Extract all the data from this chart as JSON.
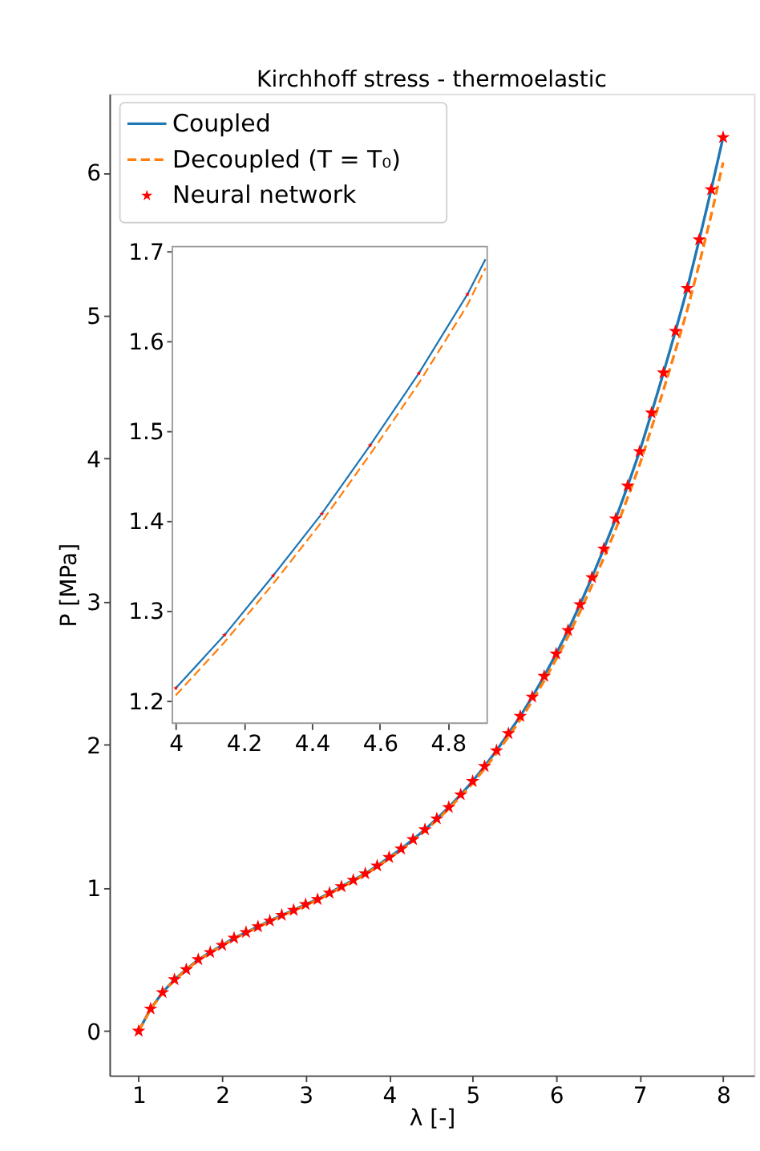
{
  "chart_data": [
    {
      "type": "line",
      "title": "Kirchhoff stress - thermoelastic",
      "xlabel": "λ [-]",
      "ylabel": "P [MPa]",
      "xlim": [
        0.65,
        8.37
      ],
      "ylim": [
        -0.31,
        6.55
      ],
      "xticks": [
        1,
        2,
        3,
        4,
        5,
        6,
        7,
        8
      ],
      "yticks": [
        0,
        1,
        2,
        3,
        4,
        5,
        6
      ],
      "grid": false,
      "legend": "top left",
      "series": [
        {
          "name": "Coupled",
          "line_style": "solid",
          "color": "#1f77b4",
          "x": [
            1,
            1.143,
            1.286,
            1.429,
            1.571,
            1.714,
            1.857,
            2,
            2.143,
            2.286,
            2.429,
            2.571,
            2.714,
            2.857,
            3,
            3.143,
            3.286,
            3.429,
            3.571,
            3.714,
            3.857,
            4,
            4.143,
            4.286,
            4.429,
            4.571,
            4.714,
            4.857,
            5,
            5.143,
            5.286,
            5.429,
            5.571,
            5.714,
            5.857,
            6,
            6.143,
            6.286,
            6.429,
            6.571,
            6.714,
            6.857,
            7,
            7.143,
            7.286,
            7.429,
            7.571,
            7.714,
            7.857,
            8
          ],
          "values": [
            0,
            0.155,
            0.27,
            0.36,
            0.43,
            0.5,
            0.55,
            0.6,
            0.65,
            0.69,
            0.73,
            0.77,
            0.81,
            0.845,
            0.885,
            0.92,
            0.965,
            1.01,
            1.055,
            1.1,
            1.155,
            1.214,
            1.273,
            1.339,
            1.408,
            1.484,
            1.564,
            1.652,
            1.745,
            1.85,
            1.96,
            2.08,
            2.2,
            2.335,
            2.48,
            2.636,
            2.8,
            2.98,
            3.17,
            3.37,
            3.58,
            3.81,
            4.05,
            4.32,
            4.6,
            4.89,
            5.19,
            5.53,
            5.88,
            6.245
          ]
        },
        {
          "name": "Decoupled (T = T₀)",
          "line_style": "dashed",
          "color": "#ff7f0e",
          "x": [
            1,
            1.143,
            1.286,
            1.429,
            1.571,
            1.714,
            1.857,
            2,
            2.143,
            2.286,
            2.429,
            2.571,
            2.714,
            2.857,
            3,
            3.143,
            3.286,
            3.429,
            3.571,
            3.714,
            3.857,
            4,
            4.143,
            4.286,
            4.429,
            4.571,
            4.714,
            4.857,
            5,
            5.143,
            5.286,
            5.429,
            5.571,
            5.714,
            5.857,
            6,
            6.143,
            6.286,
            6.429,
            6.571,
            6.714,
            6.857,
            7,
            7.143,
            7.286,
            7.429,
            7.571,
            7.714,
            7.857,
            8
          ],
          "values": [
            0,
            0.152,
            0.266,
            0.356,
            0.426,
            0.496,
            0.546,
            0.596,
            0.646,
            0.686,
            0.726,
            0.766,
            0.806,
            0.84,
            0.88,
            0.915,
            0.96,
            1.004,
            1.049,
            1.094,
            1.148,
            1.206,
            1.265,
            1.33,
            1.399,
            1.474,
            1.553,
            1.64,
            1.731,
            1.833,
            1.94,
            2.058,
            2.175,
            2.306,
            2.447,
            2.598,
            2.757,
            2.93,
            3.114,
            3.306,
            3.507,
            3.728,
            3.957,
            4.215,
            4.48,
            4.755,
            5.04,
            5.36,
            5.7,
            6.07
          ]
        },
        {
          "name": "Neural network",
          "type": "scatter",
          "marker": "star",
          "color": "#ff0000",
          "x": [
            1,
            1.143,
            1.286,
            1.429,
            1.571,
            1.714,
            1.857,
            2,
            2.143,
            2.286,
            2.429,
            2.571,
            2.714,
            2.857,
            3,
            3.143,
            3.286,
            3.429,
            3.571,
            3.714,
            3.857,
            4,
            4.143,
            4.286,
            4.429,
            4.571,
            4.714,
            4.857,
            5,
            5.143,
            5.286,
            5.429,
            5.571,
            5.714,
            5.857,
            6,
            6.143,
            6.286,
            6.429,
            6.571,
            6.714,
            6.857,
            7,
            7.143,
            7.286,
            7.429,
            7.571,
            7.714,
            7.857,
            8
          ],
          "values": [
            0,
            0.155,
            0.27,
            0.36,
            0.43,
            0.5,
            0.55,
            0.6,
            0.65,
            0.69,
            0.73,
            0.77,
            0.81,
            0.845,
            0.885,
            0.92,
            0.965,
            1.01,
            1.055,
            1.1,
            1.155,
            1.214,
            1.273,
            1.339,
            1.408,
            1.484,
            1.564,
            1.652,
            1.745,
            1.85,
            1.96,
            2.08,
            2.2,
            2.335,
            2.48,
            2.636,
            2.8,
            2.98,
            3.17,
            3.37,
            3.58,
            3.81,
            4.05,
            4.32,
            4.6,
            4.89,
            5.19,
            5.53,
            5.88,
            6.245
          ]
        }
      ]
    },
    {
      "type": "line",
      "xlim": [
        3.99,
        4.915
      ],
      "ylim": [
        1.175,
        1.705
      ],
      "xticks": [
        4,
        4.2,
        4.4,
        4.6,
        4.8
      ],
      "yticks": [
        1.2,
        1.3,
        1.4,
        1.5,
        1.6,
        1.7
      ],
      "grid": false,
      "series": [
        {
          "line_style": "solid",
          "color": "#1f77b4",
          "x": [
            4,
            4.143,
            4.286,
            4.429,
            4.571,
            4.714,
            4.857,
            4.91
          ],
          "values": [
            1.214,
            1.273,
            1.339,
            1.408,
            1.484,
            1.564,
            1.652,
            1.691
          ]
        },
        {
          "line_style": "dashed",
          "color": "#ff7f0e",
          "x": [
            4,
            4.143,
            4.286,
            4.429,
            4.571,
            4.714,
            4.857,
            4.91
          ],
          "values": [
            1.206,
            1.265,
            1.33,
            1.399,
            1.474,
            1.553,
            1.64,
            1.681
          ]
        },
        {
          "type": "scatter",
          "marker": "star",
          "color": "#ff0000",
          "x": [
            4,
            4.143,
            4.286,
            4.429,
            4.571,
            4.714,
            4.857
          ],
          "values": [
            1.214,
            1.273,
            1.339,
            1.408,
            1.484,
            1.564,
            1.652
          ]
        }
      ]
    }
  ]
}
